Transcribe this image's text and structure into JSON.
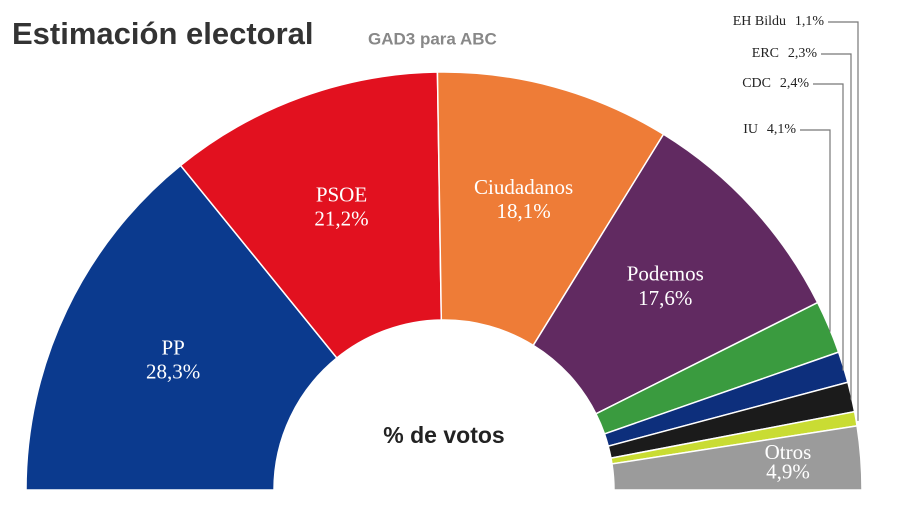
{
  "chart_data": {
    "type": "semidonut",
    "title": "Estimación electoral",
    "subtitle": "GAD3 para ABC",
    "center_label": "% de votos",
    "categories": [
      "PP",
      "PSOE",
      "Ciudadanos",
      "Podemos",
      "IU",
      "CDC",
      "ERC",
      "EH Bildu",
      "Otros"
    ],
    "values": [
      28.3,
      21.2,
      18.1,
      17.6,
      4.1,
      2.4,
      2.3,
      1.1,
      4.9
    ],
    "value_labels": [
      "28,3%",
      "21,2%",
      "18,1%",
      "17,6%",
      "4,1%",
      "2,4%",
      "2,3%",
      "1,1%",
      "4,9%"
    ],
    "colors": [
      "#0b3a8e",
      "#e2111f",
      "#ee7c37",
      "#612a61",
      "#3a9b3f",
      "#0d2f7c",
      "#1b1b1b",
      "#c9dc33",
      "#9b9b9b"
    ]
  }
}
